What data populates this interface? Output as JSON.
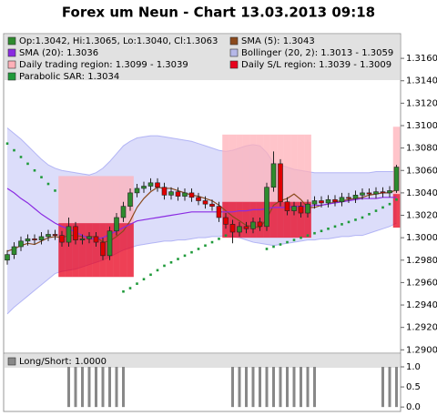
{
  "chart_data": [
    {
      "type": "candlestick",
      "title": "Forex um Neun - Chart 13.03.2013 09:18",
      "candles": {
        "name": "Op:1.3042, Hi:1.3065, Lo:1.3040, Cl:1.3063",
        "color_up": "#2e8b2e",
        "color_down": "#e00000",
        "open": [
          1.298,
          1.2985,
          1.2992,
          1.2997,
          1.2999,
          1.2998,
          1.3001,
          1.3003,
          1.3002,
          1.2996,
          1.301,
          1.2998,
          1.2999,
          1.3001,
          1.2996,
          1.2984,
          1.3006,
          1.3018,
          1.3028,
          1.304,
          1.3044,
          1.3046,
          1.3049,
          1.3045,
          1.3038,
          1.3041,
          1.3037,
          1.304,
          1.3036,
          1.3033,
          1.303,
          1.3028,
          1.3018,
          1.3012,
          1.3005,
          1.301,
          1.3008,
          1.3014,
          1.301,
          1.3045,
          1.3066,
          1.3032,
          1.3024,
          1.3028,
          1.3022,
          1.303,
          1.3033,
          1.3031,
          1.3034,
          1.3032,
          1.3036,
          1.3035,
          1.3038,
          1.304,
          1.3039,
          1.3041,
          1.304,
          1.3042
        ],
        "high": [
          1.2989,
          1.2996,
          1.3001,
          1.3003,
          1.3003,
          1.3005,
          1.3007,
          1.3007,
          1.3006,
          1.3018,
          1.3014,
          1.3003,
          1.3005,
          1.3005,
          1.3,
          1.301,
          1.3022,
          1.3032,
          1.3044,
          1.3048,
          1.305,
          1.3053,
          1.3053,
          1.3049,
          1.3045,
          1.3045,
          1.3044,
          1.3044,
          1.304,
          1.3037,
          1.3034,
          1.3032,
          1.3022,
          1.3016,
          1.3014,
          1.3014,
          1.3018,
          1.3018,
          1.3049,
          1.3077,
          1.307,
          1.3036,
          1.3032,
          1.3032,
          1.3034,
          1.3037,
          1.3037,
          1.3038,
          1.3038,
          1.304,
          1.304,
          1.3042,
          1.3044,
          1.3044,
          1.3045,
          1.3045,
          1.3046,
          1.3065
        ],
        "low": [
          1.2976,
          1.2981,
          1.2988,
          1.2993,
          1.2994,
          1.2994,
          1.2997,
          1.2998,
          1.2992,
          1.2992,
          1.2994,
          1.2994,
          1.2995,
          1.2992,
          1.298,
          1.298,
          1.3002,
          1.3014,
          1.3024,
          1.3036,
          1.304,
          1.3042,
          1.3041,
          1.3034,
          1.3034,
          1.3033,
          1.3033,
          1.3032,
          1.3029,
          1.3026,
          1.3024,
          1.3014,
          1.3008,
          1.2995,
          1.3001,
          1.3004,
          1.3004,
          1.3006,
          1.3006,
          1.3041,
          1.3028,
          1.302,
          1.302,
          1.3018,
          1.3018,
          1.3026,
          1.3027,
          1.3027,
          1.3028,
          1.3028,
          1.3031,
          1.3031,
          1.3034,
          1.3035,
          1.3035,
          1.3036,
          1.3036,
          1.304
        ],
        "close": [
          1.2985,
          1.2992,
          1.2997,
          1.2999,
          1.2998,
          1.3001,
          1.3003,
          1.3002,
          1.2996,
          1.301,
          1.2998,
          1.2999,
          1.3001,
          1.2996,
          1.2984,
          1.3006,
          1.3018,
          1.3028,
          1.304,
          1.3044,
          1.3046,
          1.3049,
          1.3045,
          1.3038,
          1.3041,
          1.3037,
          1.304,
          1.3036,
          1.3033,
          1.303,
          1.3028,
          1.3018,
          1.3012,
          1.3005,
          1.301,
          1.3008,
          1.3014,
          1.301,
          1.3045,
          1.3066,
          1.3032,
          1.3024,
          1.3028,
          1.3022,
          1.303,
          1.3033,
          1.3031,
          1.3034,
          1.3032,
          1.3036,
          1.3035,
          1.3038,
          1.304,
          1.3039,
          1.3041,
          1.304,
          1.3042,
          1.3063
        ]
      },
      "series": [
        {
          "type": "line",
          "name": "SMA (5): 1.3043",
          "color": "#8b4a1c",
          "values": [
            1.2988,
            1.299,
            1.2993,
            1.2995,
            1.2994,
            1.2997,
            1.3,
            1.3001,
            1.3,
            1.3002,
            1.3002,
            1.3001,
            1.3001,
            1.3001,
            1.2996,
            1.2997,
            1.3001,
            1.3006,
            1.3015,
            1.3027,
            1.3035,
            1.3041,
            1.3045,
            1.3044,
            1.3044,
            1.3042,
            1.304,
            1.3038,
            1.3037,
            1.3035,
            1.3033,
            1.3029,
            1.3024,
            1.3019,
            1.3015,
            1.3011,
            1.301,
            1.3009,
            1.3017,
            1.3029,
            1.3033,
            1.3035,
            1.3039,
            1.3034,
            1.3027,
            1.3027,
            1.3029,
            1.303,
            1.3032,
            1.3033,
            1.3034,
            1.3035,
            1.3036,
            1.3038,
            1.3039,
            1.304,
            1.304,
            1.3043
          ]
        },
        {
          "type": "line",
          "name": "SMA (20): 1.3036",
          "color": "#8a2be2",
          "values": [
            1.3044,
            1.304,
            1.3035,
            1.3031,
            1.3026,
            1.3021,
            1.3017,
            1.3013,
            1.301,
            1.3008,
            1.3005,
            1.3002,
            1.2999,
            1.2999,
            1.3,
            1.3003,
            1.3006,
            1.3009,
            1.3012,
            1.3015,
            1.3016,
            1.3017,
            1.3018,
            1.3019,
            1.302,
            1.3021,
            1.3022,
            1.3023,
            1.3023,
            1.3023,
            1.3023,
            1.3023,
            1.3023,
            1.3023,
            1.3024,
            1.3024,
            1.3025,
            1.3025,
            1.3026,
            1.3027,
            1.3027,
            1.3027,
            1.3028,
            1.3028,
            1.3028,
            1.3029,
            1.3029,
            1.303,
            1.3031,
            1.3032,
            1.3033,
            1.3034,
            1.3035,
            1.3035,
            1.3035,
            1.3036,
            1.3036,
            1.3036
          ]
        },
        {
          "type": "band",
          "name": "Bollinger (20, 2): 1.3013 - 1.3059",
          "color": "#8c8ff0",
          "upper": [
            1.3098,
            1.3093,
            1.3088,
            1.3082,
            1.3076,
            1.307,
            1.3065,
            1.3062,
            1.306,
            1.3059,
            1.3058,
            1.3057,
            1.3056,
            1.3058,
            1.3062,
            1.3068,
            1.3075,
            1.3082,
            1.3086,
            1.3089,
            1.309,
            1.3091,
            1.3091,
            1.309,
            1.3089,
            1.3088,
            1.3087,
            1.3086,
            1.3084,
            1.3082,
            1.308,
            1.3078,
            1.3077,
            1.3078,
            1.308,
            1.3082,
            1.3083,
            1.3082,
            1.3076,
            1.3067,
            1.3065,
            1.3063,
            1.3061,
            1.306,
            1.3059,
            1.3058,
            1.3058,
            1.3058,
            1.3058,
            1.3058,
            1.3058,
            1.3058,
            1.3058,
            1.3058,
            1.3059,
            1.3059,
            1.3059,
            1.3059
          ],
          "lower": [
            1.2932,
            1.2938,
            1.2943,
            1.2948,
            1.2953,
            1.2958,
            1.2963,
            1.2968,
            1.297,
            1.2971,
            1.2972,
            1.2974,
            1.2976,
            1.2978,
            1.298,
            1.2983,
            1.2986,
            1.2989,
            1.2991,
            1.2993,
            1.2994,
            1.2995,
            1.2996,
            1.2997,
            1.2997,
            1.2998,
            1.2998,
            1.2999,
            1.3,
            1.3,
            1.3001,
            1.3001,
            1.3002,
            1.3001,
            1.3,
            1.2998,
            1.2996,
            1.2995,
            1.2994,
            1.2993,
            1.2994,
            1.2995,
            1.2996,
            1.2997,
            1.2998,
            1.2998,
            1.2999,
            1.2999,
            1.3,
            1.3001,
            1.3001,
            1.3002,
            1.3002,
            1.3004,
            1.3006,
            1.3008,
            1.301,
            1.3013
          ]
        },
        {
          "type": "region",
          "name": "Daily trading region: 1.3099 - 1.3039",
          "color": "#ffb0b8",
          "high": [
            null,
            null,
            null,
            null,
            null,
            null,
            null,
            null,
            1.3055,
            1.3055,
            1.3055,
            1.3055,
            1.3055,
            1.3055,
            1.3055,
            1.3055,
            1.3055,
            1.3055,
            1.3055,
            null,
            null,
            null,
            null,
            null,
            null,
            null,
            null,
            null,
            null,
            null,
            null,
            null,
            1.3092,
            1.3092,
            1.3092,
            1.3092,
            1.3092,
            1.3092,
            1.3092,
            1.3092,
            1.3092,
            1.3092,
            1.3092,
            1.3092,
            1.3092,
            null,
            null,
            null,
            null,
            null,
            null,
            null,
            null,
            null,
            null,
            null,
            null,
            1.3099
          ],
          "low": [
            null,
            null,
            null,
            null,
            null,
            null,
            null,
            null,
            1.3013,
            1.3013,
            1.3013,
            1.3013,
            1.3013,
            1.3013,
            1.3013,
            1.3013,
            1.3013,
            1.3013,
            1.3013,
            null,
            null,
            null,
            null,
            null,
            null,
            null,
            null,
            null,
            null,
            null,
            null,
            null,
            1.3032,
            1.3032,
            1.3032,
            1.3032,
            1.3032,
            1.3032,
            1.3032,
            1.3032,
            1.3032,
            1.3032,
            1.3032,
            1.3032,
            1.3032,
            null,
            null,
            null,
            null,
            null,
            null,
            null,
            null,
            null,
            null,
            null,
            null,
            1.3039
          ]
        },
        {
          "type": "region",
          "name": "Daily S/L region: 1.3039 - 1.3009",
          "color": "#e8001c",
          "high": [
            null,
            null,
            null,
            null,
            null,
            null,
            null,
            null,
            1.3013,
            1.3013,
            1.3013,
            1.3013,
            1.3013,
            1.3013,
            1.3013,
            1.3013,
            1.3013,
            1.3013,
            1.3013,
            null,
            null,
            null,
            null,
            null,
            null,
            null,
            null,
            null,
            null,
            null,
            null,
            null,
            1.3032,
            1.3032,
            1.3032,
            1.3032,
            1.3032,
            1.3032,
            1.3032,
            1.3032,
            1.3032,
            1.3032,
            1.3032,
            1.3032,
            1.3032,
            null,
            null,
            null,
            null,
            null,
            null,
            null,
            null,
            null,
            null,
            null,
            null,
            1.3039
          ],
          "low": [
            null,
            null,
            null,
            null,
            null,
            null,
            null,
            null,
            1.2965,
            1.2965,
            1.2965,
            1.2965,
            1.2965,
            1.2965,
            1.2965,
            1.2965,
            1.2965,
            1.2965,
            1.2965,
            null,
            null,
            null,
            null,
            null,
            null,
            null,
            null,
            null,
            null,
            null,
            null,
            null,
            1.3,
            1.3,
            1.3,
            1.3,
            1.3,
            1.3,
            1.3,
            1.3,
            1.3,
            1.3,
            1.3,
            1.3,
            1.3,
            null,
            null,
            null,
            null,
            null,
            null,
            null,
            null,
            null,
            null,
            null,
            null,
            1.3009
          ]
        },
        {
          "type": "dots",
          "name": "Parabolic SAR: 1.3034",
          "color": "#1f9a3a",
          "values": [
            1.3084,
            1.3078,
            1.3072,
            1.3066,
            1.306,
            1.3054,
            1.3048,
            1.3042,
            null,
            null,
            null,
            null,
            null,
            null,
            null,
            null,
            null,
            1.2952,
            1.2955,
            1.2959,
            1.2963,
            1.2967,
            1.2971,
            1.2975,
            1.2978,
            1.2981,
            1.2984,
            1.2987,
            1.299,
            1.2993,
            1.2996,
            1.2999,
            1.3002,
            null,
            null,
            null,
            null,
            null,
            1.299,
            1.2992,
            1.2994,
            1.2996,
            1.2998,
            1.3,
            1.3002,
            1.3004,
            1.3006,
            1.3008,
            1.301,
            1.3012,
            1.3014,
            1.3016,
            1.3018,
            1.3021,
            1.3024,
            1.3027,
            1.303,
            1.3034
          ]
        }
      ],
      "ylim": [
        1.2897,
        1.3182
      ],
      "yticks": [
        {
          "value": 1.29,
          "label": "1.2900"
        },
        {
          "value": 1.292,
          "label": "1.2920"
        },
        {
          "value": 1.294,
          "label": "1.2940"
        },
        {
          "value": 1.296,
          "label": "1.2960"
        },
        {
          "value": 1.298,
          "label": "1.2980"
        },
        {
          "value": 1.3,
          "label": "1.3000"
        },
        {
          "value": 1.302,
          "label": "1.3020"
        },
        {
          "value": 1.304,
          "label": "1.3040"
        },
        {
          "value": 1.306,
          "label": "1.3060"
        },
        {
          "value": 1.308,
          "label": "1.3080"
        },
        {
          "value": 1.31,
          "label": "1.3100"
        },
        {
          "value": 1.312,
          "label": "1.3120"
        },
        {
          "value": 1.314,
          "label": "1.3140"
        },
        {
          "value": 1.316,
          "label": "1.3160"
        }
      ]
    },
    {
      "type": "bar",
      "series": [
        {
          "name": "Long/Short: 1.0000",
          "color": "#888888",
          "values": [
            0,
            0,
            0,
            0,
            0,
            0,
            0,
            0,
            0,
            1,
            1,
            1,
            1,
            1,
            1,
            1,
            1,
            1,
            0,
            0,
            0,
            0,
            0,
            0,
            0,
            0,
            0,
            0,
            0,
            0,
            0,
            0,
            0,
            1,
            1,
            1,
            1,
            1,
            1,
            1,
            1,
            1,
            1,
            1,
            1,
            1,
            0,
            0,
            0,
            0,
            0,
            0,
            0,
            0,
            0,
            1,
            1,
            1
          ]
        }
      ],
      "ylim": [
        -0.11,
        1.34
      ],
      "yticks": [
        {
          "value": 0,
          "label": "0.0"
        },
        {
          "value": 0.5,
          "label": "0.5"
        },
        {
          "value": 1,
          "label": "1.0"
        }
      ]
    }
  ]
}
